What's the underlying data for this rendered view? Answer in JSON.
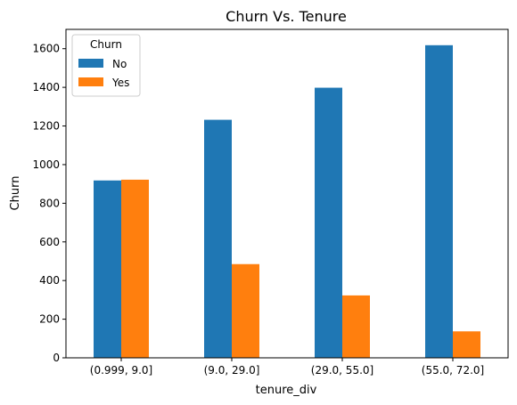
{
  "chart_data": {
    "type": "bar",
    "title": "Churn Vs. Tenure",
    "xlabel": "tenure_div",
    "ylabel": "Churn",
    "categories": [
      "(0.999, 9.0]",
      "(9.0, 29.0]",
      "(29.0, 55.0]",
      "(55.0, 72.0]"
    ],
    "series": [
      {
        "name": "No",
        "values": [
          918,
          1232,
          1398,
          1618
        ],
        "color": "#1f77b4"
      },
      {
        "name": "Yes",
        "values": [
          922,
          485,
          323,
          137
        ],
        "color": "#ff7f0e"
      }
    ],
    "ylim": [
      0,
      1700
    ],
    "yticks": [
      0,
      200,
      400,
      600,
      800,
      1000,
      1200,
      1400,
      1600
    ],
    "grid": false,
    "legend": {
      "title": "Churn",
      "placement": "top-left"
    }
  }
}
